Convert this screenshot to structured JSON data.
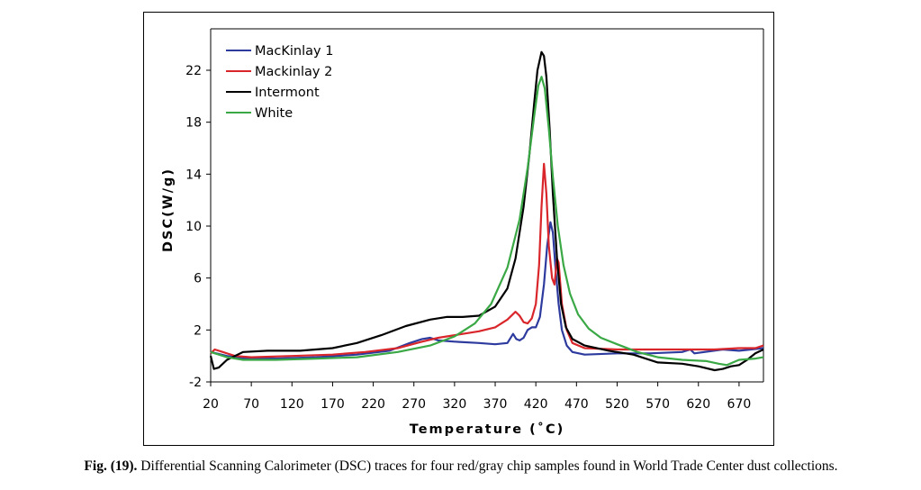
{
  "chart_data": {
    "type": "line",
    "title": "",
    "xlabel": "Temperature (˚C)",
    "ylabel": "DSC(W/g)",
    "xlim": [
      20,
      700
    ],
    "ylim": [
      -2,
      25
    ],
    "x_ticks": [
      "20",
      "70",
      "120",
      "170",
      "220",
      "270",
      "320",
      "370",
      "420",
      "470",
      "520",
      "570",
      "620",
      "670"
    ],
    "y_ticks": [
      "-2",
      "2",
      "6",
      "10",
      "14",
      "18",
      "22"
    ],
    "grid": false,
    "legend_position": "top-left",
    "series": [
      {
        "name": "MacKinlay 1",
        "color": "#2e3b9e",
        "points": [
          [
            20,
            0.3
          ],
          [
            40,
            0.0
          ],
          [
            60,
            -0.2
          ],
          [
            100,
            -0.2
          ],
          [
            150,
            -0.1
          ],
          [
            200,
            0.1
          ],
          [
            240,
            0.4
          ],
          [
            265,
            1.0
          ],
          [
            280,
            1.3
          ],
          [
            290,
            1.4
          ],
          [
            300,
            1.2
          ],
          [
            320,
            1.1
          ],
          [
            350,
            1.0
          ],
          [
            370,
            0.9
          ],
          [
            385,
            1.0
          ],
          [
            392,
            1.7
          ],
          [
            396,
            1.3
          ],
          [
            400,
            1.2
          ],
          [
            405,
            1.4
          ],
          [
            410,
            2.0
          ],
          [
            415,
            2.2
          ],
          [
            420,
            2.2
          ],
          [
            425,
            3.0
          ],
          [
            430,
            5.5
          ],
          [
            434,
            8.5
          ],
          [
            438,
            10.3
          ],
          [
            441,
            9.5
          ],
          [
            444,
            7.0
          ],
          [
            448,
            4.0
          ],
          [
            452,
            2.0
          ],
          [
            458,
            0.8
          ],
          [
            465,
            0.3
          ],
          [
            480,
            0.1
          ],
          [
            520,
            0.2
          ],
          [
            560,
            0.2
          ],
          [
            600,
            0.3
          ],
          [
            610,
            0.5
          ],
          [
            615,
            0.2
          ],
          [
            650,
            0.5
          ],
          [
            670,
            0.4
          ],
          [
            700,
            0.6
          ]
        ]
      },
      {
        "name": "Mackinlay 2",
        "color": "#d9262b",
        "points": [
          [
            20,
            0.2
          ],
          [
            25,
            0.5
          ],
          [
            35,
            0.3
          ],
          [
            50,
            0.0
          ],
          [
            70,
            -0.1
          ],
          [
            120,
            0.0
          ],
          [
            170,
            0.1
          ],
          [
            210,
            0.3
          ],
          [
            250,
            0.6
          ],
          [
            280,
            1.1
          ],
          [
            300,
            1.4
          ],
          [
            330,
            1.7
          ],
          [
            350,
            1.9
          ],
          [
            370,
            2.2
          ],
          [
            385,
            2.8
          ],
          [
            395,
            3.4
          ],
          [
            400,
            3.1
          ],
          [
            405,
            2.6
          ],
          [
            410,
            2.5
          ],
          [
            415,
            2.9
          ],
          [
            420,
            4.0
          ],
          [
            424,
            7.0
          ],
          [
            427,
            11.5
          ],
          [
            430,
            14.8
          ],
          [
            433,
            12.5
          ],
          [
            436,
            8.5
          ],
          [
            440,
            6.0
          ],
          [
            443,
            5.5
          ],
          [
            446,
            7.5
          ],
          [
            448,
            7.2
          ],
          [
            452,
            4.0
          ],
          [
            458,
            2.0
          ],
          [
            465,
            1.0
          ],
          [
            480,
            0.6
          ],
          [
            520,
            0.5
          ],
          [
            580,
            0.5
          ],
          [
            640,
            0.5
          ],
          [
            670,
            0.6
          ],
          [
            690,
            0.6
          ],
          [
            700,
            0.8
          ]
        ]
      },
      {
        "name": "Intermont",
        "color": "#000000",
        "points": [
          [
            20,
            0.0
          ],
          [
            24,
            -1.0
          ],
          [
            30,
            -0.9
          ],
          [
            40,
            -0.3
          ],
          [
            60,
            0.3
          ],
          [
            90,
            0.4
          ],
          [
            130,
            0.4
          ],
          [
            170,
            0.6
          ],
          [
            200,
            1.0
          ],
          [
            230,
            1.6
          ],
          [
            260,
            2.3
          ],
          [
            290,
            2.8
          ],
          [
            310,
            3.0
          ],
          [
            330,
            3.0
          ],
          [
            350,
            3.1
          ],
          [
            370,
            3.8
          ],
          [
            385,
            5.2
          ],
          [
            395,
            7.5
          ],
          [
            405,
            11.5
          ],
          [
            412,
            15.5
          ],
          [
            418,
            19.5
          ],
          [
            422,
            22.0
          ],
          [
            427,
            23.4
          ],
          [
            430,
            23.1
          ],
          [
            433,
            21.5
          ],
          [
            437,
            17.5
          ],
          [
            441,
            12.5
          ],
          [
            446,
            7.5
          ],
          [
            451,
            4.0
          ],
          [
            457,
            2.2
          ],
          [
            465,
            1.3
          ],
          [
            480,
            0.8
          ],
          [
            510,
            0.4
          ],
          [
            540,
            0.1
          ],
          [
            570,
            -0.5
          ],
          [
            600,
            -0.6
          ],
          [
            620,
            -0.8
          ],
          [
            640,
            -1.1
          ],
          [
            650,
            -1.0
          ],
          [
            660,
            -0.8
          ],
          [
            670,
            -0.7
          ],
          [
            680,
            -0.3
          ],
          [
            690,
            0.2
          ],
          [
            700,
            0.5
          ]
        ]
      },
      {
        "name": "White",
        "color": "#3aa845",
        "points": [
          [
            20,
            0.3
          ],
          [
            40,
            -0.1
          ],
          [
            60,
            -0.3
          ],
          [
            100,
            -0.3
          ],
          [
            150,
            -0.2
          ],
          [
            200,
            -0.1
          ],
          [
            250,
            0.3
          ],
          [
            290,
            0.8
          ],
          [
            320,
            1.5
          ],
          [
            345,
            2.5
          ],
          [
            365,
            4.0
          ],
          [
            385,
            6.8
          ],
          [
            400,
            10.5
          ],
          [
            410,
            14.5
          ],
          [
            418,
            18.5
          ],
          [
            423,
            20.8
          ],
          [
            427,
            21.5
          ],
          [
            431,
            20.6
          ],
          [
            436,
            17.5
          ],
          [
            441,
            13.8
          ],
          [
            447,
            10.0
          ],
          [
            454,
            7.0
          ],
          [
            462,
            4.8
          ],
          [
            472,
            3.2
          ],
          [
            485,
            2.1
          ],
          [
            500,
            1.4
          ],
          [
            520,
            0.9
          ],
          [
            545,
            0.3
          ],
          [
            570,
            -0.1
          ],
          [
            600,
            -0.3
          ],
          [
            630,
            -0.4
          ],
          [
            645,
            -0.6
          ],
          [
            655,
            -0.7
          ],
          [
            670,
            -0.3
          ],
          [
            690,
            -0.2
          ],
          [
            700,
            -0.1
          ]
        ]
      }
    ]
  },
  "caption": {
    "label": "Fig. (19).",
    "text": " Differential Scanning Calorimeter (DSC) traces for four red/gray chip samples found in World Trade Center dust collections."
  }
}
